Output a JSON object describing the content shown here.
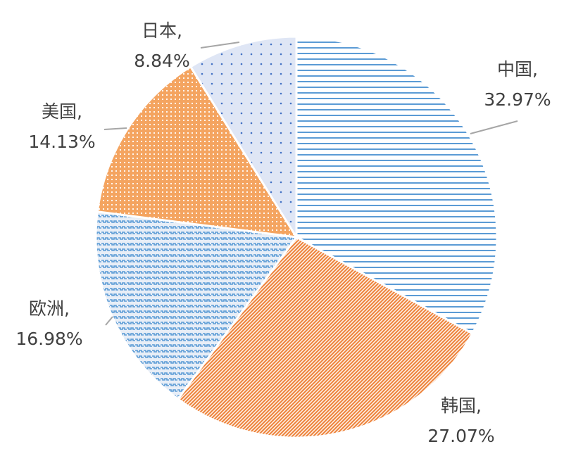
{
  "chart_data": {
    "type": "pie",
    "categories": [
      "中国,",
      "韩国,",
      "欧洲,",
      "美国,",
      "日本,"
    ],
    "values": [
      32.97,
      27.07,
      16.98,
      14.13,
      8.84
    ],
    "value_labels": [
      "32.97%",
      "27.07%",
      "16.98%",
      "14.13%",
      "8.84%"
    ],
    "colors": [
      "#5b9bd5",
      "#ed7d31",
      "#5b9bd5",
      "#f4a460",
      "#4472c4"
    ]
  }
}
